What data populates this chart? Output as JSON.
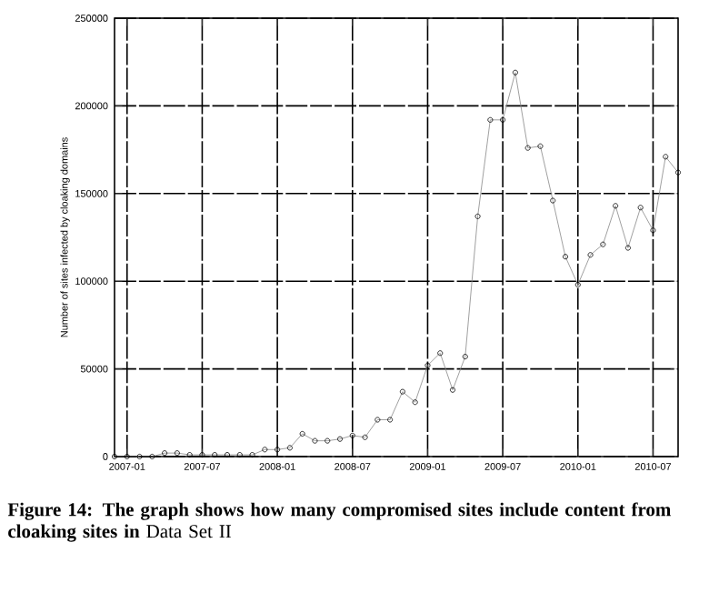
{
  "chart_data": {
    "type": "line",
    "title": "**Figure 14: The graph shows how many compromised sites include content from cloaking sites in** Data Set II",
    "ylabel": "Number of sites infected by cloaking domains",
    "x": [
      "2006-12",
      "2007-01",
      "2007-02",
      "2007-03",
      "2007-04",
      "2007-05",
      "2007-06",
      "2007-07",
      "2007-08",
      "2007-09",
      "2007-10",
      "2007-11",
      "2007-12",
      "2008-01",
      "2008-02",
      "2008-03",
      "2008-04",
      "2008-05",
      "2008-06",
      "2008-07",
      "2008-08",
      "2008-09",
      "2008-10",
      "2008-11",
      "2008-12",
      "2009-01",
      "2009-02",
      "2009-03",
      "2009-04",
      "2009-05",
      "2009-06",
      "2009-07",
      "2009-08",
      "2009-09",
      "2009-10",
      "2009-11",
      "2009-12",
      "2010-01",
      "2010-02",
      "2010-03",
      "2010-04",
      "2010-05",
      "2010-06",
      "2010-07",
      "2010-08",
      "2010-09"
    ],
    "series": [
      {
        "color": "#888888",
        "values": [
          0,
          0,
          0,
          0,
          2000,
          2000,
          1000,
          1000,
          1000,
          1000,
          1000,
          1000,
          4000,
          4000,
          5000,
          13000,
          9000,
          9000,
          10000,
          12000,
          11000,
          21000,
          21000,
          37000,
          31000,
          52000,
          59000,
          38000,
          57000,
          137000,
          192000,
          192000,
          219000,
          176000,
          177000,
          146000,
          114000,
          98000,
          115000,
          121000,
          143000,
          119000,
          142000,
          129000,
          171000,
          162000
        ]
      }
    ],
    "xlim": [
      "2006-12",
      "2010-09"
    ],
    "xticks": [
      "2007-01",
      "2007-07",
      "2008-01",
      "2008-07",
      "2009-01",
      "2009-07",
      "2010-01",
      "2010-07"
    ],
    "ylim": [
      0,
      250000
    ],
    "yticks": [
      0,
      50000,
      100000,
      150000,
      200000,
      250000
    ],
    "grid": true,
    "marker": "circle",
    "line_style": "solid"
  }
}
